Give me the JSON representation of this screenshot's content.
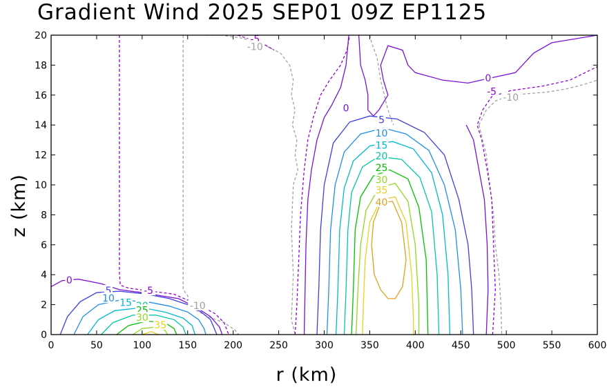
{
  "chart_data": {
    "type": "contour",
    "title": "Gradient Wind 2025 SEP01 09Z  EP1125",
    "xlabel": "r (km)",
    "ylabel": "z (km)",
    "xlim": [
      0,
      600
    ],
    "ylim": [
      0,
      20
    ],
    "x_ticks": [
      "0",
      "50",
      "100",
      "150",
      "200",
      "250",
      "300",
      "350",
      "400",
      "450",
      "500",
      "550",
      "600"
    ],
    "y_ticks": [
      "0",
      "2",
      "4",
      "6",
      "8",
      "10",
      "12",
      "14",
      "16",
      "18",
      "20"
    ],
    "contour_interval": 5,
    "grid": false,
    "levels": [
      {
        "value": -10,
        "color": "#a0a0a0",
        "style": "dashed"
      },
      {
        "value": -5,
        "color": "#9400d3",
        "style": "dashed"
      },
      {
        "value": 0,
        "color": "#7b10d6",
        "style": "solid"
      },
      {
        "value": 5,
        "color": "#3a3ee0",
        "style": "solid"
      },
      {
        "value": 10,
        "color": "#1e8ee8",
        "style": "solid"
      },
      {
        "value": 15,
        "color": "#00b8d0",
        "style": "solid"
      },
      {
        "value": 20,
        "color": "#00c8a0",
        "style": "solid"
      },
      {
        "value": 25,
        "color": "#00c000",
        "style": "solid"
      },
      {
        "value": 30,
        "color": "#90d820",
        "style": "solid"
      },
      {
        "value": 35,
        "color": "#e6d020",
        "style": "solid"
      },
      {
        "value": 40,
        "color": "#e0a020",
        "style": "solid"
      }
    ],
    "labels": [
      {
        "text": "-5",
        "r": 224,
        "z": 19.7,
        "level": -5
      },
      {
        "text": "-10",
        "r": 224,
        "z": 19.2,
        "level": -10
      },
      {
        "text": "0",
        "r": 480,
        "z": 17.1,
        "level": 0
      },
      {
        "text": "-5",
        "r": 484,
        "z": 16.2,
        "level": -5
      },
      {
        "text": "-10",
        "r": 505,
        "z": 15.8,
        "level": -10
      },
      {
        "text": "0",
        "r": 324,
        "z": 15.1,
        "level": 0
      },
      {
        "text": "5",
        "r": 363,
        "z": 14.3,
        "level": 5
      },
      {
        "text": "10",
        "r": 363,
        "z": 13.4,
        "level": 10
      },
      {
        "text": "15",
        "r": 363,
        "z": 12.6,
        "level": 15
      },
      {
        "text": "20",
        "r": 363,
        "z": 11.9,
        "level": 20
      },
      {
        "text": "25",
        "r": 363,
        "z": 11.1,
        "level": 25
      },
      {
        "text": "30",
        "r": 363,
        "z": 10.3,
        "level": 30
      },
      {
        "text": "35",
        "r": 363,
        "z": 9.6,
        "level": 35
      },
      {
        "text": "40",
        "r": 363,
        "z": 8.8,
        "level": 40
      },
      {
        "text": "0",
        "r": 20,
        "z": 3.6,
        "level": 0
      },
      {
        "text": "-5",
        "r": 107,
        "z": 2.9,
        "level": -5
      },
      {
        "text": "5",
        "r": 63,
        "z": 2.9,
        "level": 5
      },
      {
        "text": "10",
        "r": 63,
        "z": 2.4,
        "level": 10
      },
      {
        "text": "15",
        "r": 82,
        "z": 2.1,
        "level": 15
      },
      {
        "text": "20",
        "r": 100,
        "z": 1.9,
        "level": 20
      },
      {
        "text": "-10",
        "r": 161,
        "z": 1.9,
        "level": -10
      },
      {
        "text": "25",
        "r": 100,
        "z": 1.6,
        "level": 25
      },
      {
        "text": "30",
        "r": 100,
        "z": 1.1,
        "level": 30
      },
      {
        "text": "35",
        "r": 120,
        "z": 0.6,
        "level": 35
      }
    ]
  }
}
